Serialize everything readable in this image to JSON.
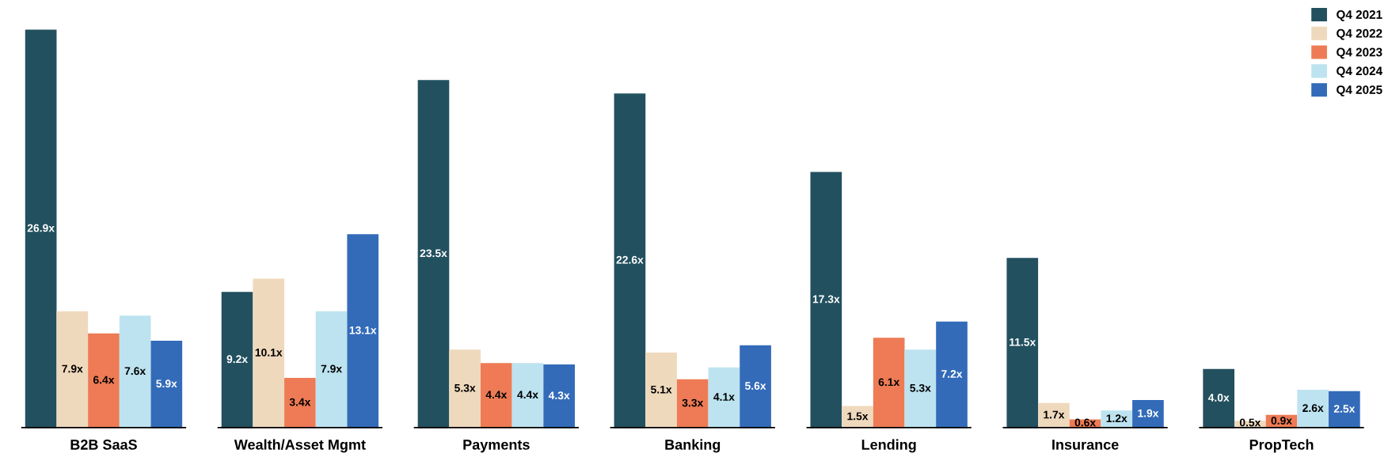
{
  "chart_data": {
    "type": "bar",
    "categories": [
      "B2B SaaS",
      "Wealth/Asset Mgmt",
      "Payments",
      "Banking",
      "Lending",
      "Insurance",
      "PropTech"
    ],
    "series": [
      {
        "name": "Q4 2021",
        "color": "#22505f",
        "values": [
          26.9,
          9.2,
          23.5,
          22.6,
          17.3,
          11.5,
          4.0
        ],
        "value_labels": [
          "26.9x",
          "9.2x",
          "23.5x",
          "22.6x",
          "17.3x",
          "11.5x",
          "4.0x"
        ]
      },
      {
        "name": "Q4 2022",
        "color": "#efd9bd",
        "values": [
          7.9,
          10.1,
          5.3,
          5.1,
          1.5,
          1.7,
          0.5
        ],
        "value_labels": [
          "7.9x",
          "10.1x",
          "5.3x",
          "5.1x",
          "1.5x",
          "1.7x",
          "0.5x"
        ]
      },
      {
        "name": "Q4 2023",
        "color": "#ee7b55",
        "values": [
          6.4,
          3.4,
          4.4,
          3.3,
          6.1,
          0.6,
          0.9
        ],
        "value_labels": [
          "6.4x",
          "3.4x",
          "4.4x",
          "3.3x",
          "6.1x",
          "0.6x",
          "0.9x"
        ]
      },
      {
        "name": "Q4 2024",
        "color": "#bde3f0",
        "values": [
          7.6,
          7.9,
          4.4,
          4.1,
          5.3,
          1.2,
          2.6
        ],
        "value_labels": [
          "7.6x",
          "7.9x",
          "4.4x",
          "4.1x",
          "5.3x",
          "1.2x",
          "2.6x"
        ]
      },
      {
        "name": "Q4 2025",
        "color": "#336bb9",
        "values": [
          5.9,
          13.1,
          4.3,
          5.6,
          7.2,
          1.9,
          2.5
        ],
        "value_labels": [
          "5.9x",
          "13.1x",
          "4.3x",
          "5.6x",
          "7.2x",
          "1.9x",
          "2.5x"
        ]
      }
    ],
    "legend": "top right",
    "grid": false
  }
}
